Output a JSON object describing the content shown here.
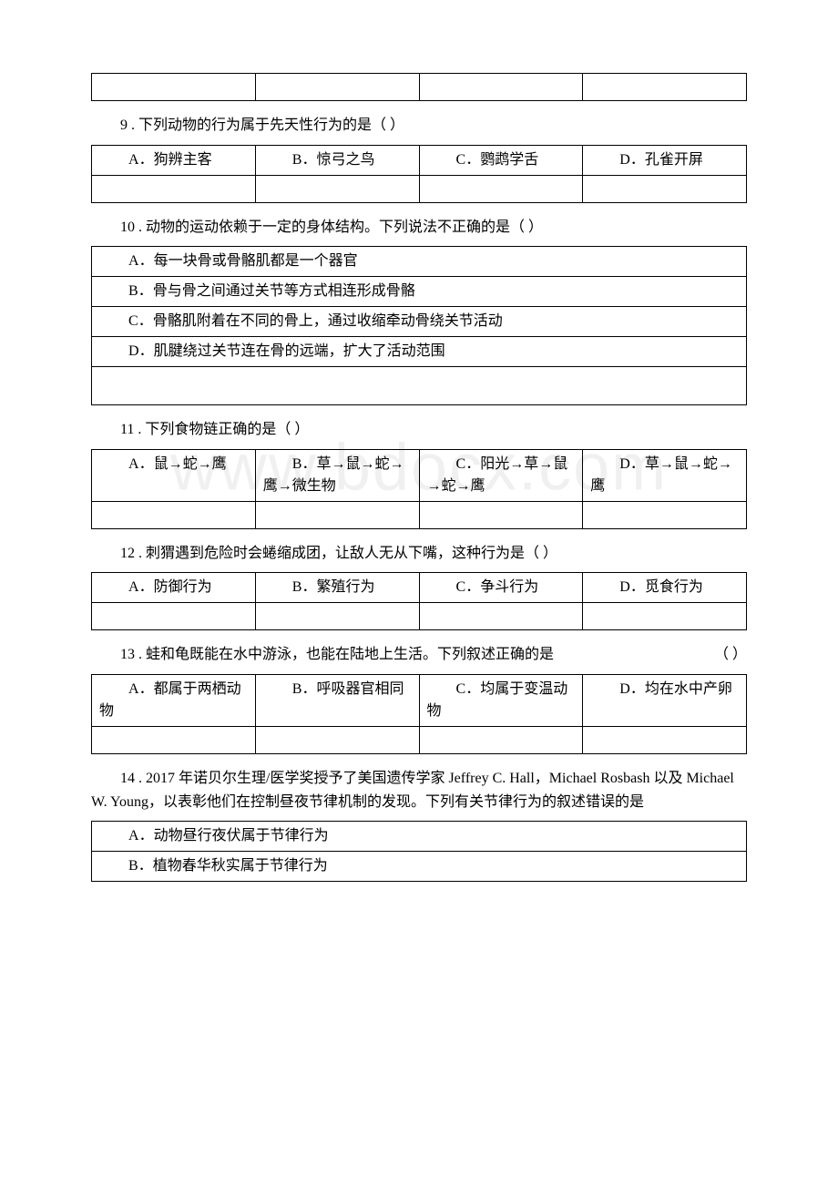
{
  "watermark": "www.bdocx.com",
  "q8_empty": {
    "a": "",
    "b": "",
    "c": "",
    "d": ""
  },
  "q9": {
    "text": "9 . 下列动物的行为属于先天性行为的是（ ）",
    "a": "A．狗辨主客",
    "b": "B．惊弓之鸟",
    "c": "C．鹦鹉学舌",
    "d": "D．孔雀开屏"
  },
  "q10": {
    "text": "10 . 动物的运动依赖于一定的身体结构。下列说法不正确的是（ ）",
    "a": "A．每一块骨或骨骼肌都是一个器官",
    "b": "B．骨与骨之间通过关节等方式相连形成骨骼",
    "c": "C．骨骼肌附着在不同的骨上，通过收缩牵动骨绕关节活动",
    "d": "D．肌腱绕过关节连在骨的远端，扩大了活动范围"
  },
  "q11": {
    "text": "11 . 下列食物链正确的是（ ）",
    "a": "A．鼠→蛇→鹰",
    "b": "B．草→鼠→蛇→鹰→微生物",
    "c": "C．阳光→草→鼠→蛇→鹰",
    "d": "D．草→鼠→蛇→鹰"
  },
  "q12": {
    "text": "12 . 刺猬遇到危险时会蜷缩成团，让敌人无从下嘴，这种行为是（ ）",
    "a": "A．防御行为",
    "b": "B．繁殖行为",
    "c": "C．争斗行为",
    "d": "D．觅食行为"
  },
  "q13": {
    "text_main": "13 . 蛙和龟既能在水中游泳，也能在陆地上生活。下列叙述正确的是",
    "text_paren": "（ ）",
    "a": "A．都属于两栖动物",
    "b": "B．呼吸器官相同",
    "c": "C．均属于变温动物",
    "d": "D．均在水中产卵"
  },
  "q14": {
    "text": "14 . 2017 年诺贝尔生理/医学奖授予了美国遗传学家 Jeffrey C. Hall，Michael Rosbash 以及 Michael W. Young，以表彰他们在控制昼夜节律机制的发现。下列有关节律行为的叙述错误的是",
    "a": "A．动物昼行夜伏属于节律行为",
    "b": "B．植物春华秋实属于节律行为"
  }
}
